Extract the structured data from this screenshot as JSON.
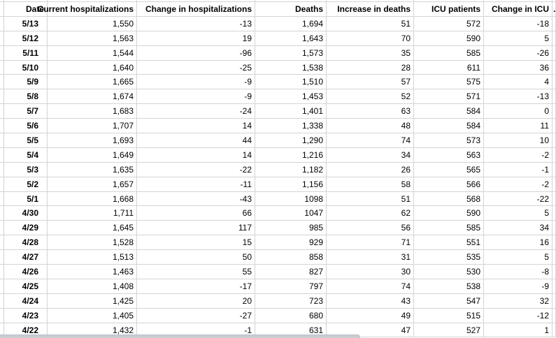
{
  "sheet": {
    "columns": [
      {
        "key": "date",
        "label": "Date"
      },
      {
        "key": "current-hospitalizations",
        "label": "Current hospitalizations"
      },
      {
        "key": "change-in-hospitalizations",
        "label": "Change in hospitalizations"
      },
      {
        "key": "deaths",
        "label": "Deaths"
      },
      {
        "key": "increase-in-deaths",
        "label": "Increase in deaths"
      },
      {
        "key": "icu-patients",
        "label": "ICU patients"
      },
      {
        "key": "change-in-icu",
        "label": "Change in ICU"
      }
    ],
    "rows": [
      [
        "5/13",
        "1,550",
        "-13",
        "1,694",
        "51",
        "572",
        "-18"
      ],
      [
        "5/12",
        "1,563",
        "19",
        "1,643",
        "70",
        "590",
        "5"
      ],
      [
        "5/11",
        "1,544",
        "-96",
        "1,573",
        "35",
        "585",
        "-26"
      ],
      [
        "5/10",
        "1,640",
        "-25",
        "1,538",
        "28",
        "611",
        "36"
      ],
      [
        "5/9",
        "1,665",
        "-9",
        "1,510",
        "57",
        "575",
        "4"
      ],
      [
        "5/8",
        "1,674",
        "-9",
        "1,453",
        "52",
        "571",
        "-13"
      ],
      [
        "5/7",
        "1,683",
        "-24",
        "1,401",
        "63",
        "584",
        "0"
      ],
      [
        "5/6",
        "1,707",
        "14",
        "1,338",
        "48",
        "584",
        "11"
      ],
      [
        "5/5",
        "1,693",
        "44",
        "1,290",
        "74",
        "573",
        "10"
      ],
      [
        "5/4",
        "1,649",
        "14",
        "1,216",
        "34",
        "563",
        "-2"
      ],
      [
        "5/3",
        "1,635",
        "-22",
        "1,182",
        "26",
        "565",
        "-1"
      ],
      [
        "5/2",
        "1,657",
        "-11",
        "1,156",
        "58",
        "566",
        "-2"
      ],
      [
        "5/1",
        "1,668",
        "-43",
        "1098",
        "51",
        "568",
        "-22"
      ],
      [
        "4/30",
        "1,711",
        "66",
        "1047",
        "62",
        "590",
        "5"
      ],
      [
        "4/29",
        "1,645",
        "117",
        "985",
        "56",
        "585",
        "34"
      ],
      [
        "4/28",
        "1,528",
        "15",
        "929",
        "71",
        "551",
        "16"
      ],
      [
        "4/27",
        "1,513",
        "50",
        "858",
        "31",
        "535",
        "5"
      ],
      [
        "4/26",
        "1,463",
        "55",
        "827",
        "30",
        "530",
        "-8"
      ],
      [
        "4/25",
        "1,408",
        "-17",
        "797",
        "74",
        "538",
        "-9"
      ],
      [
        "4/24",
        "1,425",
        "20",
        "723",
        "43",
        "547",
        "32"
      ],
      [
        "4/23",
        "1,405",
        "-27",
        "680",
        "49",
        "515",
        "-12"
      ],
      [
        "4/22",
        "1,432",
        "-1",
        "631",
        "47",
        "527",
        "1"
      ]
    ],
    "clipped_next_column_fragment": ".",
    "colors": {
      "gridline": "#d4d4d4",
      "text": "#000000",
      "background": "#ffffff",
      "scrollbar_thumb": "#c8cdd2"
    }
  }
}
